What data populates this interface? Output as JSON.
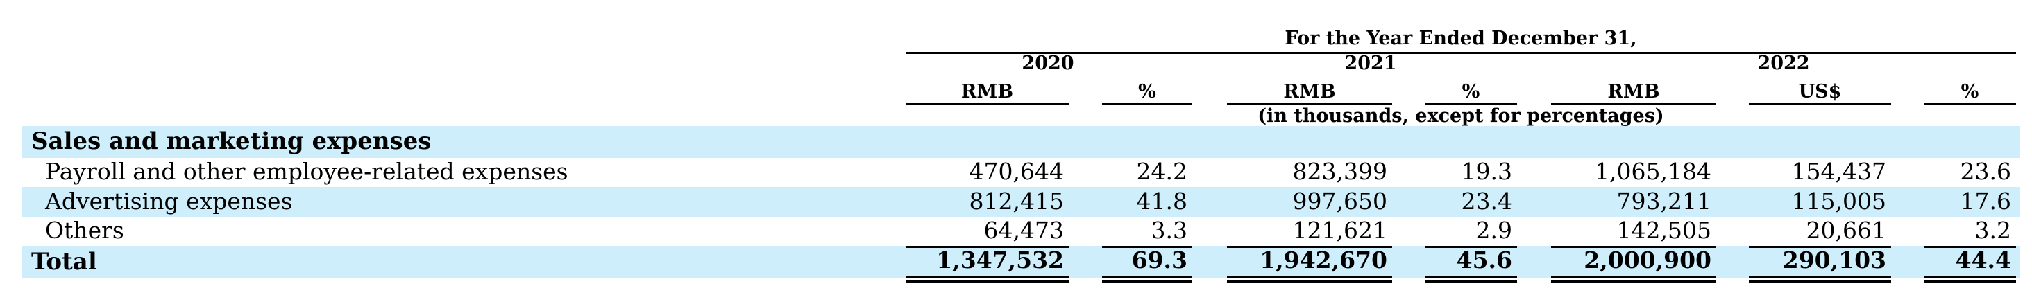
{
  "table": {
    "period_header": "For the Year Ended December 31,",
    "year_headers": [
      "2020",
      "2021",
      "2022"
    ],
    "unit_headers": [
      "RMB",
      "%",
      "RMB",
      "%",
      "RMB",
      "US$",
      "%"
    ],
    "unit_note": "(in thousands, except for percentages)",
    "section_title": "Sales and marketing expenses",
    "rows": [
      {
        "label": "Payroll and other employee-related expenses",
        "values": [
          "470,644",
          "24.2",
          "823,399",
          "19.3",
          "1,065,184",
          "154,437",
          "23.6"
        ]
      },
      {
        "label": "Advertising expenses",
        "values": [
          "812,415",
          "41.8",
          "997,650",
          "23.4",
          "793,211",
          "115,005",
          "17.6"
        ]
      },
      {
        "label": "Others",
        "values": [
          "64,473",
          "3.3",
          "121,621",
          "2.9",
          "142,505",
          "20,661",
          "3.2"
        ]
      }
    ],
    "total": {
      "label": "Total",
      "values": [
        "1,347,532",
        "69.3",
        "1,942,670",
        "45.6",
        "2,000,900",
        "290,103",
        "44.4"
      ]
    }
  },
  "colors": {
    "row_band": "#cdeefa",
    "text": "#000000"
  }
}
